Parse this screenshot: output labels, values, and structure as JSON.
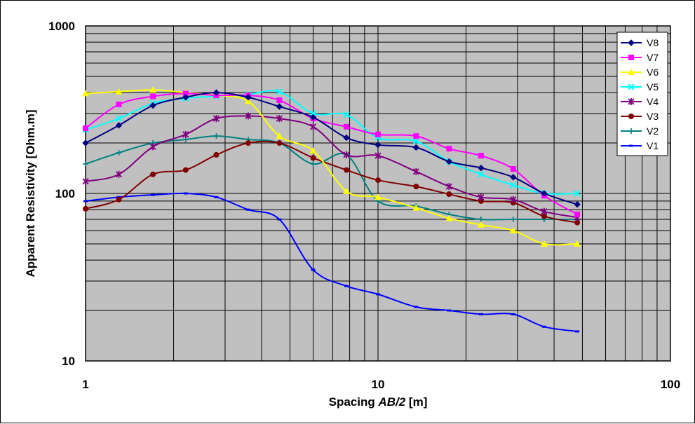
{
  "chart_data": {
    "type": "line",
    "xscale": "log",
    "yscale": "log",
    "xlim": [
      1,
      100
    ],
    "ylim": [
      10,
      1000
    ],
    "xticks": [
      1,
      10,
      100
    ],
    "xtick_labels": [
      "1",
      "10",
      "100"
    ],
    "yticks": [
      10,
      100,
      1000
    ],
    "ytick_labels": [
      "10",
      "100",
      "1000"
    ],
    "xlabel_prefix": "Spacing ",
    "xlabel_italic": "AB/2",
    "xlabel_suffix": " [m]",
    "ylabel": "Apparent Resistivity [Ohm.m]",
    "grid": true,
    "legend_position": "top-right",
    "x": [
      1,
      1.3,
      1.7,
      2.2,
      2.8,
      3.6,
      4.6,
      6,
      7.8,
      10,
      13.5,
      17.5,
      22.5,
      29,
      37,
      48
    ],
    "series": [
      {
        "name": "V8",
        "color": "#000080",
        "marker": "diamond",
        "values": [
          200,
          255,
          335,
          375,
          400,
          375,
          330,
          285,
          215,
          195,
          188,
          155,
          142,
          125,
          100,
          86
        ]
      },
      {
        "name": "V7",
        "color": "#ff00ff",
        "marker": "square",
        "values": [
          245,
          340,
          380,
          395,
          385,
          385,
          360,
          280,
          250,
          225,
          220,
          185,
          168,
          140,
          97,
          75
        ]
      },
      {
        "name": "V6",
        "color": "#ffff00",
        "marker": "triangle",
        "values": [
          395,
          405,
          415,
          400,
          385,
          355,
          220,
          180,
          103,
          95,
          82,
          71,
          65,
          60,
          50,
          50
        ]
      },
      {
        "name": "V5",
        "color": "#00ffff",
        "marker": "x",
        "values": [
          240,
          280,
          345,
          370,
          380,
          390,
          405,
          300,
          295,
          215,
          205,
          155,
          130,
          112,
          100,
          100
        ]
      },
      {
        "name": "V4",
        "color": "#800080",
        "marker": "star",
        "values": [
          118,
          130,
          190,
          225,
          280,
          290,
          280,
          250,
          170,
          168,
          135,
          110,
          95,
          92,
          78,
          72
        ]
      },
      {
        "name": "V3",
        "color": "#800000",
        "marker": "circle",
        "values": [
          81,
          92,
          130,
          138,
          170,
          200,
          200,
          163,
          138,
          120,
          110,
          99,
          90,
          88,
          73,
          67
        ]
      },
      {
        "name": "V2",
        "color": "#008080",
        "marker": "plus",
        "values": [
          150,
          175,
          200,
          210,
          220,
          210,
          200,
          150,
          170,
          90,
          84,
          75,
          70,
          70,
          70,
          70
        ]
      },
      {
        "name": "V1",
        "color": "#0000ff",
        "marker": "dash",
        "values": [
          90,
          95,
          98,
          100,
          95,
          80,
          70,
          35,
          28,
          25,
          21,
          20,
          19,
          19,
          16,
          15
        ]
      }
    ]
  }
}
